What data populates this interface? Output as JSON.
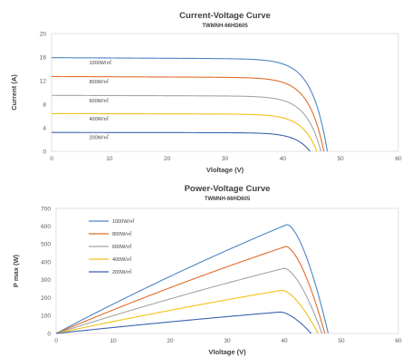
{
  "chart_data": [
    {
      "type": "line",
      "title": "Current-Voltage Curve",
      "subtitle": "TWMNH-66HD605",
      "xlabel": "Vloltage (V)",
      "ylabel": "Current (A)",
      "xlim": [
        0,
        60
      ],
      "ylim": [
        0,
        20
      ],
      "xticks": [
        "0",
        "10",
        "20",
        "30",
        "40",
        "50",
        "60"
      ],
      "yticks": [
        "0",
        "4",
        "8",
        "12",
        "16",
        "20"
      ],
      "grid": false,
      "series": [
        {
          "name": "1000W/㎡",
          "color": "#4a86c5",
          "isc": 15.9,
          "voc": 47.7,
          "knee": 42.5
        },
        {
          "name": "800W/㎡",
          "color": "#e06c2b",
          "isc": 12.7,
          "voc": 47.1,
          "knee": 42.3
        },
        {
          "name": "600W/㎡",
          "color": "#a5a5a5",
          "isc": 9.5,
          "voc": 46.6,
          "knee": 42.0
        },
        {
          "name": "400W/㎡",
          "color": "#f2c014",
          "isc": 6.4,
          "voc": 45.9,
          "knee": 41.6
        },
        {
          "name": "200W/㎡",
          "color": "#3a62b0",
          "isc": 3.2,
          "voc": 44.7,
          "knee": 40.6
        }
      ]
    },
    {
      "type": "line",
      "title": "Power-Voltage Curve",
      "subtitle": "TWMNH-66HD605",
      "xlabel": "Vloltage (V)",
      "ylabel": "P max (W)",
      "xlim": [
        0,
        60
      ],
      "ylim": [
        0,
        700
      ],
      "xticks": [
        "0",
        "10",
        "20",
        "30",
        "40",
        "50",
        "60"
      ],
      "yticks": [
        "0",
        "100",
        "200",
        "300",
        "400",
        "500",
        "600",
        "700"
      ],
      "grid": false,
      "legend": "top-left",
      "series": [
        {
          "name": "1000W/㎡",
          "color": "#4a86c5",
          "pmax": 610,
          "vmp": 40.5,
          "voc": 47.7
        },
        {
          "name": "800W/㎡",
          "color": "#e06c2b",
          "pmax": 487,
          "vmp": 40.3,
          "voc": 47.1
        },
        {
          "name": "600W/㎡",
          "color": "#a5a5a5",
          "pmax": 365,
          "vmp": 40.0,
          "voc": 46.6
        },
        {
          "name": "400W/㎡",
          "color": "#f2c014",
          "pmax": 242,
          "vmp": 39.6,
          "voc": 45.9
        },
        {
          "name": "200W/㎡",
          "color": "#3a62b0",
          "pmax": 120,
          "vmp": 39.3,
          "voc": 44.7
        }
      ]
    }
  ]
}
